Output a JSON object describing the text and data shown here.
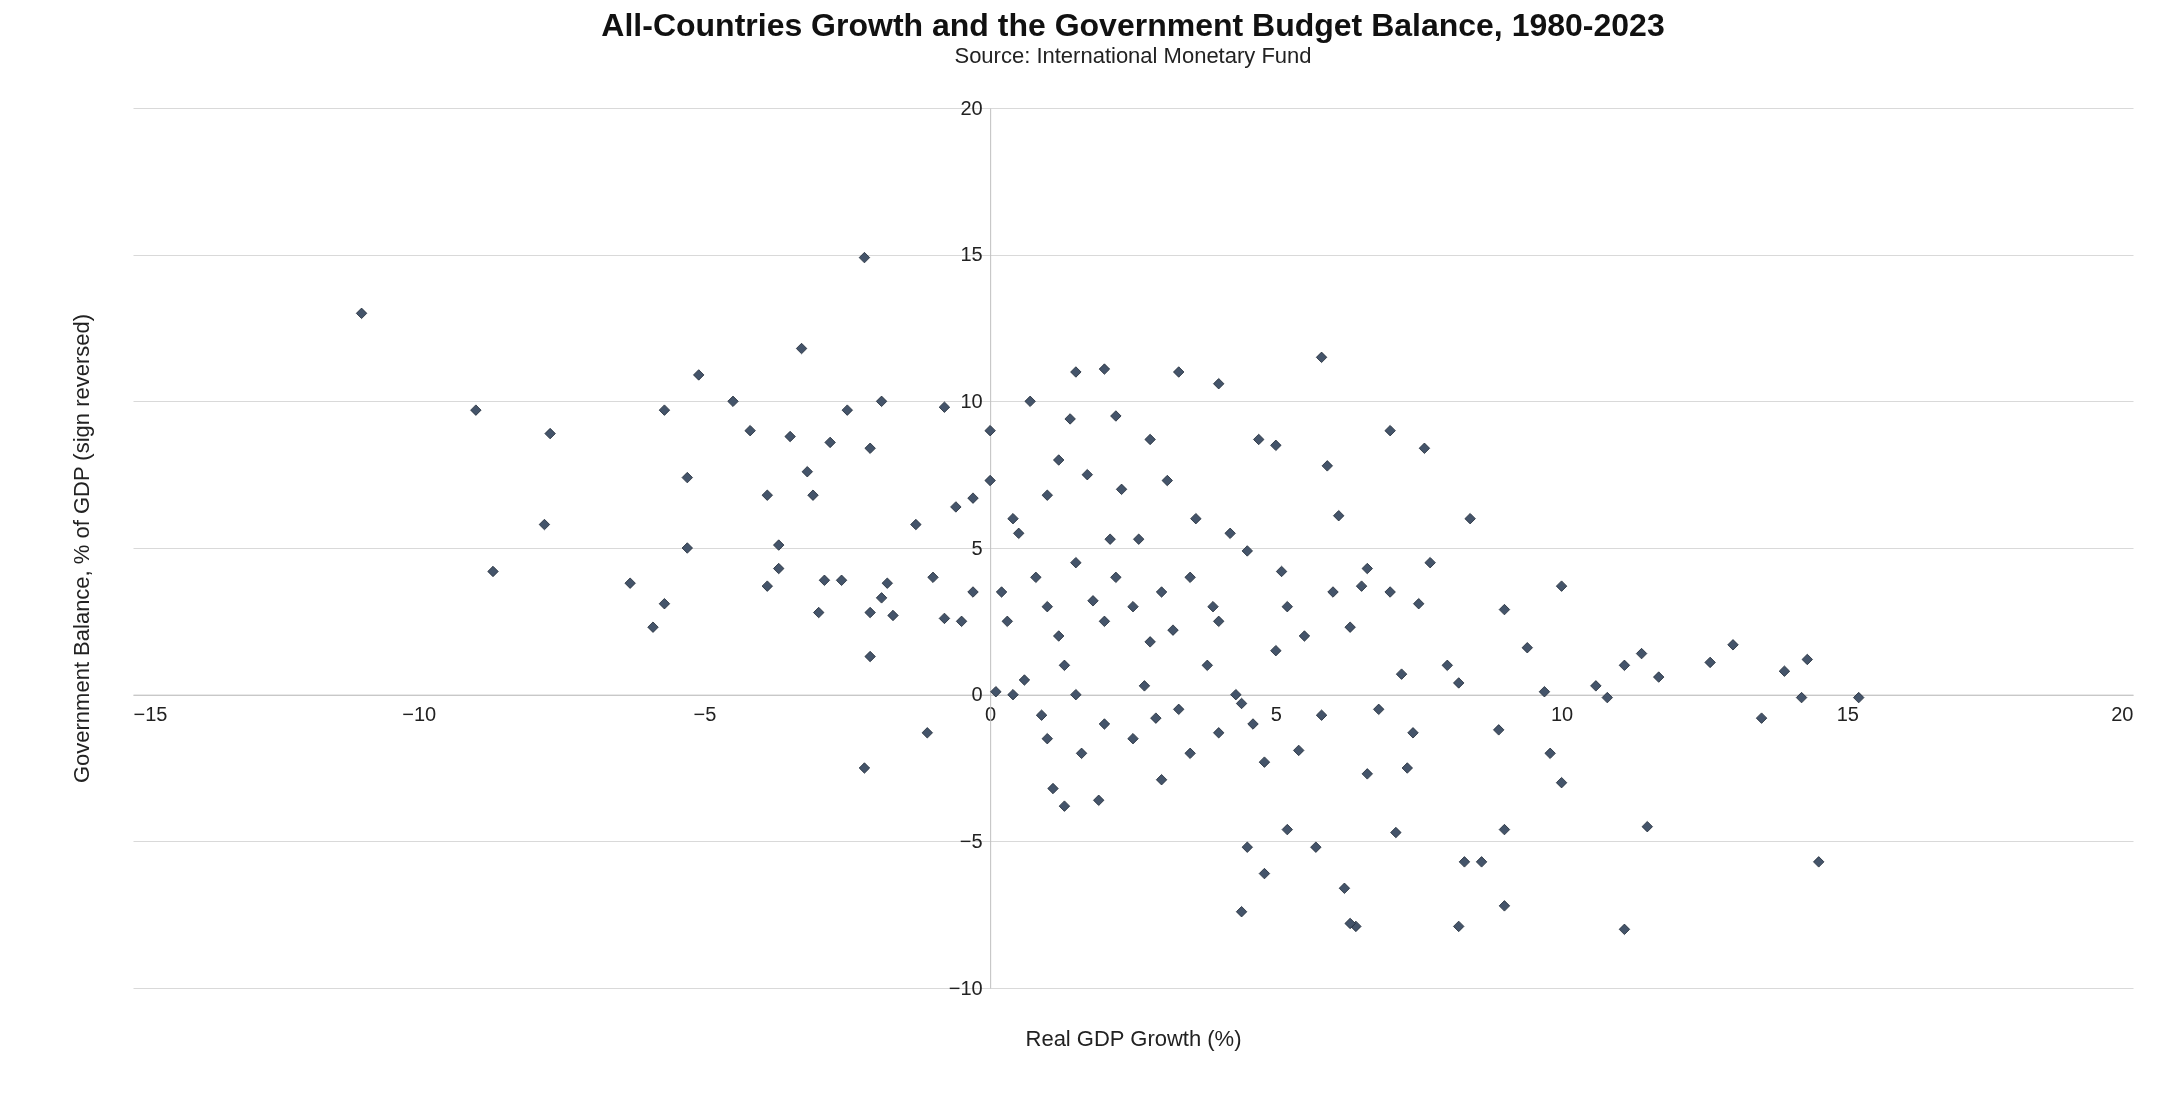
{
  "chart_data": {
    "type": "scatter",
    "title": "All-Countries Growth and the Government Budget Balance, 1980-2023",
    "subtitle": "Source: International Monetary Fund",
    "xlabel": "Real GDP Growth (%)",
    "ylabel": "Government Balance, % of GDP (sign reversed)",
    "xlim": [
      -15,
      20
    ],
    "ylim": [
      -10,
      20
    ],
    "xticks": [
      -15,
      -10,
      -5,
      0,
      5,
      10,
      15,
      20
    ],
    "yticks": [
      -10,
      -5,
      0,
      5,
      10,
      15,
      20
    ],
    "grid": "y",
    "marker": "diamond",
    "series": [
      {
        "color": "#44546a",
        "x": [
          -11,
          -9,
          -7.7,
          -8.7,
          -7.8,
          -6.3,
          -5.9,
          -5.7,
          -5.7,
          -5.1,
          -5.3,
          -5.3,
          -4.5,
          -4.2,
          -3.9,
          -3.9,
          -3.7,
          -3.7,
          -3.5,
          -3.3,
          -3.2,
          -3.1,
          -3,
          -2.9,
          -2.8,
          -2.6,
          -2.5,
          -2.2,
          -2.2,
          -2.1,
          -2.1,
          -2.1,
          -1.9,
          -1.8,
          -1.7,
          -1.9,
          -1.3,
          -1.1,
          -1,
          -0.8,
          -0.8,
          -0.6,
          0,
          0,
          -0.3,
          0.1,
          0.4,
          0.7,
          1.1,
          1.3,
          1.4,
          1.5,
          2,
          1.9,
          3.3,
          4,
          4.4,
          4.5,
          4.8,
          4.7,
          5,
          5.2,
          5.7,
          5.8,
          5.9,
          6.2,
          6.4,
          6.3,
          6.6,
          7,
          7.1,
          7.6,
          8.2,
          8.3,
          8.4,
          8.6,
          9,
          9,
          8.9,
          9,
          9.4,
          9.7,
          9.8,
          10,
          10,
          10.6,
          10.8,
          11.1,
          11.1,
          11.4,
          11.5,
          11.7,
          12.6,
          13,
          13.5,
          13.9,
          14.2,
          14.3,
          14.5,
          15.2,
          0.5,
          0.8,
          1,
          1.2,
          1.5,
          1.8,
          2,
          2.2,
          2.5,
          2.8,
          3,
          3.2,
          3.5,
          3.8,
          4,
          4.3,
          4.6,
          5,
          1.5,
          2,
          2.5,
          3,
          3.5,
          4,
          1,
          0.3,
          0.2,
          -0.5,
          -0.3,
          1.7,
          2.3,
          2.8,
          1.2,
          2.2,
          3.1,
          3.6,
          4.2,
          0.4,
          1,
          2.6,
          5.2,
          5.5,
          6,
          6.3,
          6.6,
          7,
          7.2,
          7.5,
          7.7,
          7.4,
          7.3,
          8,
          8.2,
          6.8,
          5.8,
          5.4,
          4.8,
          6.1,
          6.5,
          5.1,
          4.5,
          3.9,
          2.1,
          0.6,
          1.3,
          2.7,
          3.3,
          4.4,
          1.6,
          2.9,
          0.9
        ],
        "values": [
          13,
          9.7,
          8.9,
          4.2,
          5.8,
          3.8,
          2.3,
          3.1,
          9.7,
          10.9,
          7.4,
          5,
          10,
          9,
          6.8,
          3.7,
          4.3,
          5.1,
          8.8,
          11.8,
          7.6,
          6.8,
          2.8,
          3.9,
          8.6,
          3.9,
          9.7,
          14.9,
          -2.5,
          2.8,
          1.3,
          8.4,
          3.3,
          3.8,
          2.7,
          10,
          5.8,
          -1.3,
          4,
          9.8,
          2.6,
          6.4,
          9,
          7.3,
          6.7,
          0.1,
          0,
          10,
          -3.2,
          -3.8,
          9.4,
          11,
          11.1,
          -3.6,
          11,
          10.6,
          -7.4,
          -5.2,
          -6.1,
          8.7,
          8.5,
          -4.6,
          -5.2,
          11.5,
          7.8,
          -6.6,
          -7.9,
          -7.8,
          -2.7,
          9,
          -4.7,
          8.4,
          -7.9,
          -5.7,
          6,
          -5.7,
          -7.2,
          -4.6,
          -1.2,
          2.9,
          1.6,
          0.1,
          -2,
          3.7,
          -3,
          0.3,
          -0.1,
          1,
          -8,
          1.4,
          -4.5,
          0.6,
          1.1,
          1.7,
          -0.8,
          0.8,
          -0.1,
          1.2,
          -5.7,
          -0.1,
          5.5,
          4,
          3,
          2,
          4.5,
          3.2,
          2.5,
          4,
          3,
          1.8,
          3.5,
          2.2,
          4,
          1,
          2.5,
          0,
          -1,
          1.5,
          0,
          -1,
          -1.5,
          -2.9,
          -2,
          -1.3,
          -1.5,
          2.5,
          3.5,
          2.5,
          3.5,
          7.5,
          7,
          8.7,
          8,
          9.5,
          7.3,
          6,
          5.5,
          6,
          6.8,
          5.3,
          3,
          2,
          3.5,
          2.3,
          4.3,
          3.5,
          0.7,
          3.1,
          4.5,
          -1.3,
          -2.5,
          1,
          0.4,
          -0.5,
          -0.7,
          -1.9,
          -2.3,
          6.1,
          3.7,
          4.2,
          4.9,
          3,
          5.3,
          0.5,
          1,
          0.3,
          -0.5,
          -0.3,
          -2,
          -0.8,
          -0.7
        ]
      }
    ]
  }
}
